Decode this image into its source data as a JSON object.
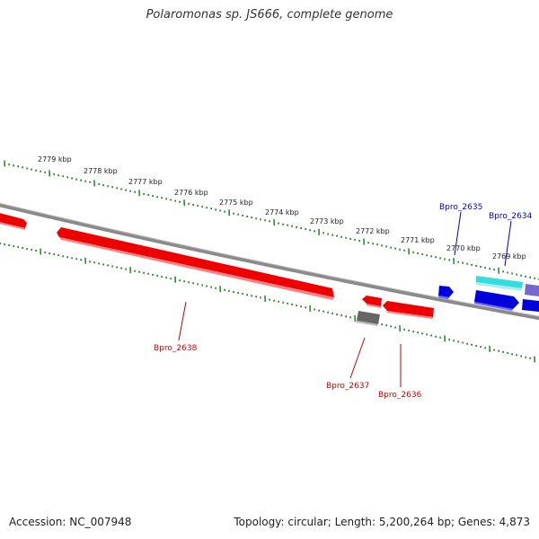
{
  "title": "Polaromonas sp. JS666, complete genome",
  "footer": {
    "accession": "Accession: NC_007948",
    "summary": "Topology: circular; Length: 5,200,264 bp; Genes: 4,873"
  },
  "colors": {
    "backbone": "#8a8a8a",
    "ticks": "#2e8b2e",
    "gene_red": "#ee0000",
    "gene_blue": "#0000dd",
    "gene_grey": "#666666",
    "gene_cyan": "#33dddd",
    "gene_purple": "#7766cc",
    "label_red": "#cc0000",
    "label_blue": "#0000cc"
  },
  "kbp_labels": [
    "2779 kbp",
    "2778 kbp",
    "2777 kbp",
    "2776 kbp",
    "2775 kbp",
    "2774 kbp",
    "2773 kbp",
    "2772 kbp",
    "2771 kbp",
    "2770 kbp",
    "2769 kbp"
  ],
  "gene_labels": [
    {
      "name": "Bpro_2638",
      "strand": "minus"
    },
    {
      "name": "Bpro_2637",
      "strand": "minus"
    },
    {
      "name": "Bpro_2636",
      "strand": "minus"
    },
    {
      "name": "Bpro_2635",
      "strand": "plus"
    },
    {
      "name": "Bpro_2634",
      "strand": "plus"
    }
  ]
}
